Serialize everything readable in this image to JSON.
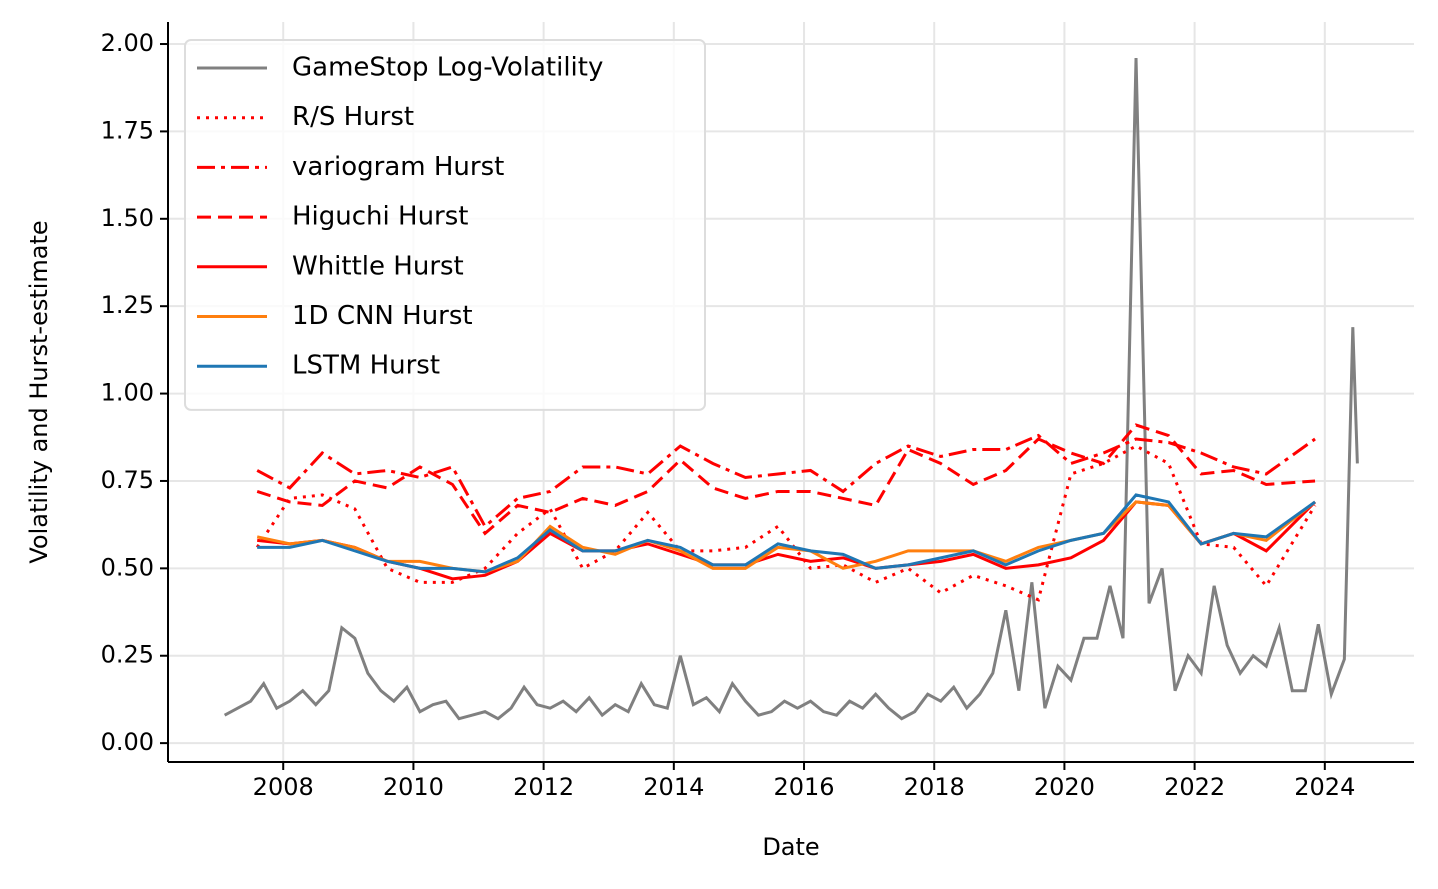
{
  "chart_data": {
    "type": "line",
    "xlabel": "Date",
    "ylabel": "Volatility and Hurst-estimate",
    "xlim": [
      2006.23,
      2025.37
    ],
    "ylim": [
      -0.054,
      2.063
    ],
    "xticks": [
      2008,
      2010,
      2012,
      2014,
      2016,
      2018,
      2020,
      2022,
      2024
    ],
    "yticks": [
      {
        "value": 0,
        "label": "0.00"
      },
      {
        "value": 0.25,
        "label": "0.25"
      },
      {
        "value": 0.5,
        "label": "0.50"
      },
      {
        "value": 0.75,
        "label": "0.75"
      },
      {
        "value": 1,
        "label": "1.00"
      },
      {
        "value": 1.25,
        "label": "1.25"
      },
      {
        "value": 1.5,
        "label": "1.50"
      },
      {
        "value": 1.75,
        "label": "1.75"
      },
      {
        "value": 2,
        "label": "2.00"
      }
    ],
    "grid": true,
    "legend": "upper left",
    "series": [
      {
        "name": "GameStop Log-Volatility",
        "color": "#808080",
        "linestyle": "solid",
        "x": [
          2007.1,
          2007.3,
          2007.5,
          2007.7,
          2007.9,
          2008.1,
          2008.3,
          2008.5,
          2008.7,
          2008.9,
          2009.1,
          2009.3,
          2009.5,
          2009.7,
          2009.9,
          2010.1,
          2010.3,
          2010.5,
          2010.7,
          2010.9,
          2011.1,
          2011.3,
          2011.5,
          2011.7,
          2011.9,
          2012.1,
          2012.3,
          2012.5,
          2012.7,
          2012.9,
          2013.1,
          2013.3,
          2013.5,
          2013.7,
          2013.9,
          2014.1,
          2014.3,
          2014.5,
          2014.7,
          2014.9,
          2015.1,
          2015.3,
          2015.5,
          2015.7,
          2015.9,
          2016.1,
          2016.3,
          2016.5,
          2016.7,
          2016.9,
          2017.1,
          2017.3,
          2017.5,
          2017.7,
          2017.9,
          2018.1,
          2018.3,
          2018.5,
          2018.7,
          2018.9,
          2019.1,
          2019.3,
          2019.5,
          2019.7,
          2019.9,
          2020.1,
          2020.3,
          2020.5,
          2020.7,
          2020.9,
          2021.1,
          2021.3,
          2021.5,
          2021.7,
          2021.9,
          2022.1,
          2022.3,
          2022.5,
          2022.7,
          2022.9,
          2023.1,
          2023.3,
          2023.5,
          2023.7,
          2023.9,
          2024.1,
          2024.3,
          2024.43,
          2024.5
        ],
        "values": [
          0.08,
          0.1,
          0.12,
          0.17,
          0.1,
          0.12,
          0.15,
          0.11,
          0.15,
          0.33,
          0.3,
          0.2,
          0.15,
          0.12,
          0.16,
          0.09,
          0.11,
          0.12,
          0.07,
          0.08,
          0.09,
          0.07,
          0.1,
          0.16,
          0.11,
          0.1,
          0.12,
          0.09,
          0.13,
          0.08,
          0.11,
          0.09,
          0.17,
          0.11,
          0.1,
          0.25,
          0.11,
          0.13,
          0.09,
          0.17,
          0.12,
          0.08,
          0.09,
          0.12,
          0.1,
          0.12,
          0.09,
          0.08,
          0.12,
          0.1,
          0.14,
          0.1,
          0.07,
          0.09,
          0.14,
          0.12,
          0.16,
          0.1,
          0.14,
          0.2,
          0.38,
          0.15,
          0.46,
          0.1,
          0.22,
          0.18,
          0.3,
          0.3,
          0.45,
          0.3,
          1.96,
          0.4,
          0.5,
          0.15,
          0.25,
          0.2,
          0.45,
          0.28,
          0.2,
          0.25,
          0.22,
          0.33,
          0.15,
          0.15,
          0.34,
          0.14,
          0.24,
          1.19,
          0.8
        ]
      },
      {
        "name": "R/S Hurst",
        "color": "#ff0000",
        "linestyle": "dotted",
        "x": [
          2007.6,
          2008.1,
          2008.6,
          2009.1,
          2009.6,
          2010.1,
          2010.6,
          2011.1,
          2011.6,
          2012.1,
          2012.6,
          2013.1,
          2013.6,
          2014.1,
          2014.6,
          2015.1,
          2015.6,
          2016.1,
          2016.6,
          2017.1,
          2017.6,
          2018.1,
          2018.6,
          2019.1,
          2019.6,
          2020.1,
          2020.6,
          2021.1,
          2021.6,
          2022.1,
          2022.6,
          2023.1,
          2023.85
        ],
        "values": [
          0.56,
          0.7,
          0.71,
          0.67,
          0.5,
          0.46,
          0.46,
          0.5,
          0.6,
          0.67,
          0.5,
          0.55,
          0.66,
          0.55,
          0.55,
          0.56,
          0.62,
          0.5,
          0.51,
          0.46,
          0.5,
          0.43,
          0.48,
          0.45,
          0.41,
          0.77,
          0.8,
          0.85,
          0.8,
          0.57,
          0.56,
          0.45,
          0.68
        ]
      },
      {
        "name": "variogram Hurst",
        "color": "#ff0000",
        "linestyle": "dashdot",
        "x": [
          2007.6,
          2008.1,
          2008.6,
          2009.1,
          2009.6,
          2010.1,
          2010.6,
          2011.1,
          2011.6,
          2012.1,
          2012.6,
          2013.1,
          2013.6,
          2014.1,
          2014.6,
          2015.1,
          2015.6,
          2016.1,
          2016.6,
          2017.1,
          2017.6,
          2018.1,
          2018.6,
          2019.1,
          2019.6,
          2020.1,
          2020.6,
          2021.1,
          2021.6,
          2022.1,
          2022.6,
          2023.1,
          2023.85
        ],
        "values": [
          0.78,
          0.73,
          0.83,
          0.77,
          0.78,
          0.76,
          0.79,
          0.62,
          0.7,
          0.72,
          0.79,
          0.79,
          0.77,
          0.85,
          0.8,
          0.76,
          0.77,
          0.78,
          0.72,
          0.8,
          0.85,
          0.82,
          0.84,
          0.84,
          0.88,
          0.8,
          0.83,
          0.87,
          0.86,
          0.83,
          0.79,
          0.77,
          0.87
        ]
      },
      {
        "name": "Higuchi Hurst",
        "color": "#ff0000",
        "linestyle": "dashed",
        "x": [
          2007.6,
          2008.1,
          2008.6,
          2009.1,
          2009.6,
          2010.1,
          2010.6,
          2011.1,
          2011.6,
          2012.1,
          2012.6,
          2013.1,
          2013.6,
          2014.1,
          2014.6,
          2015.1,
          2015.6,
          2016.1,
          2016.6,
          2017.1,
          2017.6,
          2018.1,
          2018.6,
          2019.1,
          2019.6,
          2020.1,
          2020.6,
          2021.1,
          2021.6,
          2022.1,
          2022.6,
          2023.1,
          2023.85
        ],
        "values": [
          0.72,
          0.69,
          0.68,
          0.75,
          0.73,
          0.79,
          0.74,
          0.6,
          0.68,
          0.66,
          0.7,
          0.68,
          0.72,
          0.81,
          0.73,
          0.7,
          0.72,
          0.72,
          0.7,
          0.68,
          0.84,
          0.8,
          0.74,
          0.78,
          0.87,
          0.83,
          0.8,
          0.91,
          0.88,
          0.77,
          0.78,
          0.74,
          0.75
        ]
      },
      {
        "name": "Whittle Hurst",
        "color": "#ff0000",
        "linestyle": "solid",
        "x": [
          2007.6,
          2008.1,
          2008.6,
          2009.1,
          2009.6,
          2010.1,
          2010.6,
          2011.1,
          2011.6,
          2012.1,
          2012.6,
          2013.1,
          2013.6,
          2014.1,
          2014.6,
          2015.1,
          2015.6,
          2016.1,
          2016.6,
          2017.1,
          2017.6,
          2018.1,
          2018.6,
          2019.1,
          2019.6,
          2020.1,
          2020.6,
          2021.1,
          2021.6,
          2022.1,
          2022.6,
          2023.1,
          2023.85
        ],
        "values": [
          0.58,
          0.57,
          0.58,
          0.56,
          0.52,
          0.5,
          0.47,
          0.48,
          0.52,
          0.6,
          0.55,
          0.55,
          0.57,
          0.54,
          0.51,
          0.51,
          0.54,
          0.52,
          0.53,
          0.5,
          0.51,
          0.52,
          0.54,
          0.5,
          0.51,
          0.53,
          0.58,
          0.69,
          0.68,
          0.57,
          0.6,
          0.55,
          0.69
        ]
      },
      {
        "name": "1D CNN Hurst",
        "color": "#ff7f0e",
        "linestyle": "solid",
        "x": [
          2007.6,
          2008.1,
          2008.6,
          2009.1,
          2009.6,
          2010.1,
          2010.6,
          2011.1,
          2011.6,
          2012.1,
          2012.6,
          2013.1,
          2013.6,
          2014.1,
          2014.6,
          2015.1,
          2015.6,
          2016.1,
          2016.6,
          2017.1,
          2017.6,
          2018.1,
          2018.6,
          2019.1,
          2019.6,
          2020.1,
          2020.6,
          2021.1,
          2021.6,
          2022.1,
          2022.6,
          2023.1,
          2023.85
        ],
        "values": [
          0.59,
          0.57,
          0.58,
          0.56,
          0.52,
          0.52,
          0.5,
          0.49,
          0.52,
          0.62,
          0.56,
          0.54,
          0.58,
          0.55,
          0.5,
          0.5,
          0.56,
          0.55,
          0.5,
          0.52,
          0.55,
          0.55,
          0.55,
          0.52,
          0.56,
          0.58,
          0.6,
          0.69,
          0.68,
          0.57,
          0.6,
          0.58,
          0.69
        ]
      },
      {
        "name": "LSTM Hurst",
        "color": "#1f77b4",
        "linestyle": "solid",
        "x": [
          2007.6,
          2008.1,
          2008.6,
          2009.1,
          2009.6,
          2010.1,
          2010.6,
          2011.1,
          2011.6,
          2012.1,
          2012.6,
          2013.1,
          2013.6,
          2014.1,
          2014.6,
          2015.1,
          2015.6,
          2016.1,
          2016.6,
          2017.1,
          2017.6,
          2018.1,
          2018.6,
          2019.1,
          2019.6,
          2020.1,
          2020.6,
          2021.1,
          2021.6,
          2022.1,
          2022.6,
          2023.1,
          2023.85
        ],
        "values": [
          0.56,
          0.56,
          0.58,
          0.55,
          0.52,
          0.5,
          0.5,
          0.49,
          0.53,
          0.61,
          0.55,
          0.55,
          0.58,
          0.56,
          0.51,
          0.51,
          0.57,
          0.55,
          0.54,
          0.5,
          0.51,
          0.53,
          0.55,
          0.51,
          0.55,
          0.58,
          0.6,
          0.71,
          0.69,
          0.57,
          0.6,
          0.59,
          0.69
        ]
      }
    ]
  }
}
